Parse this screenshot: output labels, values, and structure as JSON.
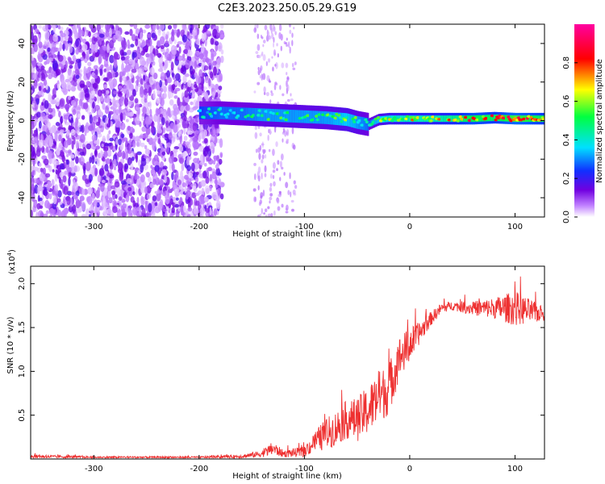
{
  "title": "C2E3.2023.250.05.29.G19",
  "chart_data": [
    {
      "type": "heatmap",
      "xlabel": "Height of straight line (km)",
      "ylabel": "Frequency (Hz)",
      "xlim": [
        -360,
        128
      ],
      "ylim": [
        -50,
        50
      ],
      "xticks": [
        -300,
        -200,
        -100,
        0,
        100
      ],
      "yticks": [
        -40,
        -20,
        0,
        20,
        40
      ],
      "colorbar": {
        "label": "Normalized spectral amplitude",
        "range": [
          0.0,
          1.0
        ],
        "ticks": [
          0.0,
          0.2,
          0.4,
          0.6,
          0.8
        ],
        "colormap": [
          "#ffffff",
          "#c080ff",
          "#7000e0",
          "#1030ff",
          "#00e0ff",
          "#00ff40",
          "#ffff00",
          "#ff0000",
          "#ff00a0"
        ]
      },
      "signal_band": {
        "x": [
          -200,
          -180,
          -160,
          -140,
          -120,
          -100,
          -80,
          -60,
          -50,
          -40,
          -30,
          -20,
          0,
          20,
          40,
          60,
          80,
          100,
          128
        ],
        "center": [
          4,
          4,
          3.5,
          3,
          2.5,
          2,
          1.5,
          0.5,
          -1,
          -2,
          0.5,
          1,
          1,
          1,
          1,
          1,
          1.5,
          1,
          1
        ],
        "amplitude": [
          0.35,
          0.4,
          0.4,
          0.45,
          0.45,
          0.45,
          0.45,
          0.5,
          0.45,
          0.4,
          0.5,
          0.55,
          0.6,
          0.6,
          0.65,
          0.75,
          0.7,
          0.8,
          0.7
        ]
      }
    },
    {
      "type": "line",
      "xlabel": "Height of straight line (km)",
      "ylabel": "SNR (10 * v/v)",
      "yscale_label": "(x10",
      "yscale_exp": "4",
      "yscale_close": ")",
      "xlim": [
        -360,
        128
      ],
      "ylim": [
        0.0,
        2.2
      ],
      "xticks": [
        -300,
        -200,
        -100,
        0,
        100
      ],
      "yticks": [
        0.5,
        1.0,
        1.5,
        2.0
      ],
      "line_color": "#ee3030",
      "series": [
        {
          "x": [
            -360,
            -300,
            -250,
            -200,
            -160,
            -140,
            -130,
            -120,
            -100,
            -90,
            -80,
            -70,
            -60,
            -50,
            -40,
            -30,
            -20,
            -10,
            0,
            10,
            20,
            30,
            40,
            60,
            80,
            100,
            128
          ],
          "y": [
            0.03,
            0.02,
            0.02,
            0.02,
            0.03,
            0.06,
            0.12,
            0.06,
            0.08,
            0.2,
            0.28,
            0.35,
            0.45,
            0.45,
            0.55,
            0.7,
            0.8,
            1.15,
            1.3,
            1.45,
            1.6,
            1.72,
            1.75,
            1.72,
            1.72,
            1.72,
            1.65
          ],
          "noise": [
            0.02,
            0.01,
            0.01,
            0.01,
            0.02,
            0.04,
            0.08,
            0.04,
            0.06,
            0.12,
            0.18,
            0.2,
            0.22,
            0.25,
            0.28,
            0.3,
            0.3,
            0.25,
            0.2,
            0.12,
            0.08,
            0.06,
            0.05,
            0.08,
            0.12,
            0.2,
            0.08
          ]
        }
      ]
    }
  ]
}
